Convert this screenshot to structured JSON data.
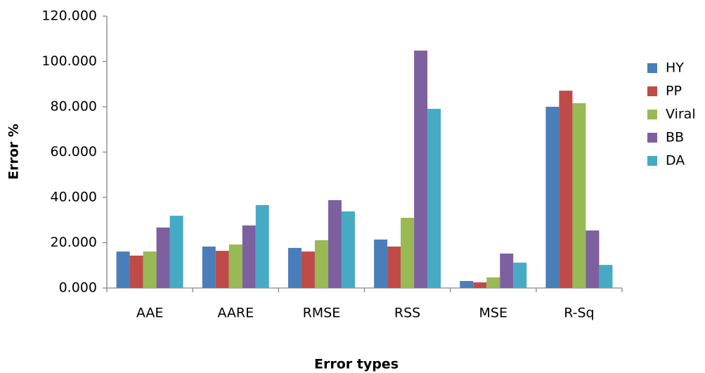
{
  "chart_data": {
    "type": "bar",
    "x_label": "Error types",
    "y_label": "Error %",
    "categories": [
      "AAE",
      "AARE",
      "RMSE",
      "RSS",
      "MSE",
      "R-Sq"
    ],
    "series": [
      {
        "name": "HY",
        "color": "#4a7ebb",
        "values": [
          16.1,
          18.3,
          17.7,
          21.4,
          3.1,
          80.0
        ]
      },
      {
        "name": "PP",
        "color": "#be4b48",
        "values": [
          14.3,
          16.4,
          16.1,
          18.3,
          2.5,
          87.1
        ]
      },
      {
        "name": "Viral",
        "color": "#98b954",
        "values": [
          16.1,
          19.2,
          21.1,
          31.0,
          4.7,
          81.6
        ]
      },
      {
        "name": "BB",
        "color": "#7d60a0",
        "values": [
          26.7,
          27.6,
          38.8,
          104.8,
          15.2,
          25.4
        ]
      },
      {
        "name": "DA",
        "color": "#46aac5",
        "values": [
          31.9,
          36.6,
          33.8,
          79.1,
          11.2,
          10.2
        ]
      }
    ],
    "ylim": [
      0,
      120
    ],
    "yticks": [
      {
        "value": 0,
        "label": "0.000"
      },
      {
        "value": 20,
        "label": "20.000"
      },
      {
        "value": 40,
        "label": "40.000"
      },
      {
        "value": 60,
        "label": "60.000"
      },
      {
        "value": 80,
        "label": "80.000"
      },
      {
        "value": 100,
        "label": "100.000"
      },
      {
        "value": 120,
        "label": "120.000"
      }
    ],
    "legend": "right",
    "grid": false
  }
}
